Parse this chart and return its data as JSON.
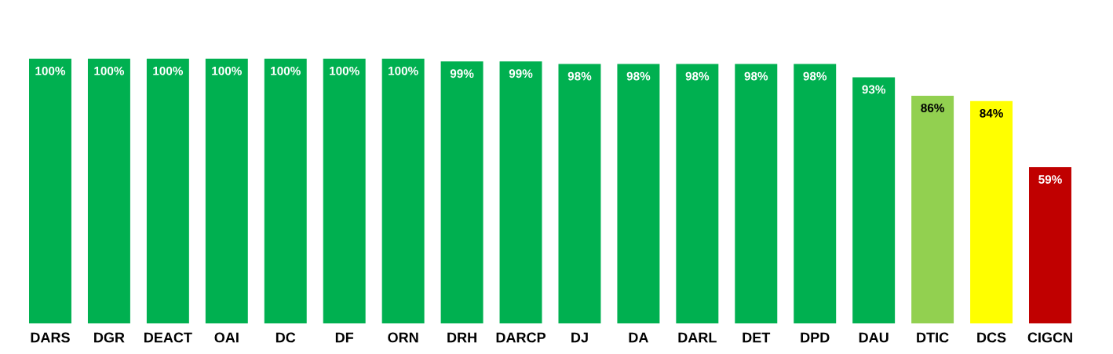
{
  "chart_data": {
    "type": "bar",
    "categories": [
      "DARS",
      "DGR",
      "DEACT",
      "OAI",
      "DC",
      "DF",
      "ORN",
      "DRH",
      "DARCP",
      "DJ",
      "DA",
      "DARL",
      "DET",
      "DPD",
      "DAU",
      "DTIC",
      "DCS",
      "CIGCN"
    ],
    "values": [
      100,
      100,
      100,
      100,
      100,
      100,
      100,
      99,
      99,
      98,
      98,
      98,
      98,
      98,
      93,
      86,
      84,
      59
    ],
    "colors": [
      "#00b050",
      "#00b050",
      "#00b050",
      "#00b050",
      "#00b050",
      "#00b050",
      "#00b050",
      "#00b050",
      "#00b050",
      "#00b050",
      "#00b050",
      "#00b050",
      "#00b050",
      "#00b050",
      "#00b050",
      "#92d050",
      "#ffff00",
      "#c00000"
    ],
    "value_labels": [
      "100%",
      "100%",
      "100%",
      "100%",
      "100%",
      "100%",
      "100%",
      "99%",
      "99%",
      "98%",
      "98%",
      "98%",
      "98%",
      "98%",
      "93%",
      "86%",
      "84%",
      "59%"
    ],
    "grid": false,
    "legend": false
  }
}
